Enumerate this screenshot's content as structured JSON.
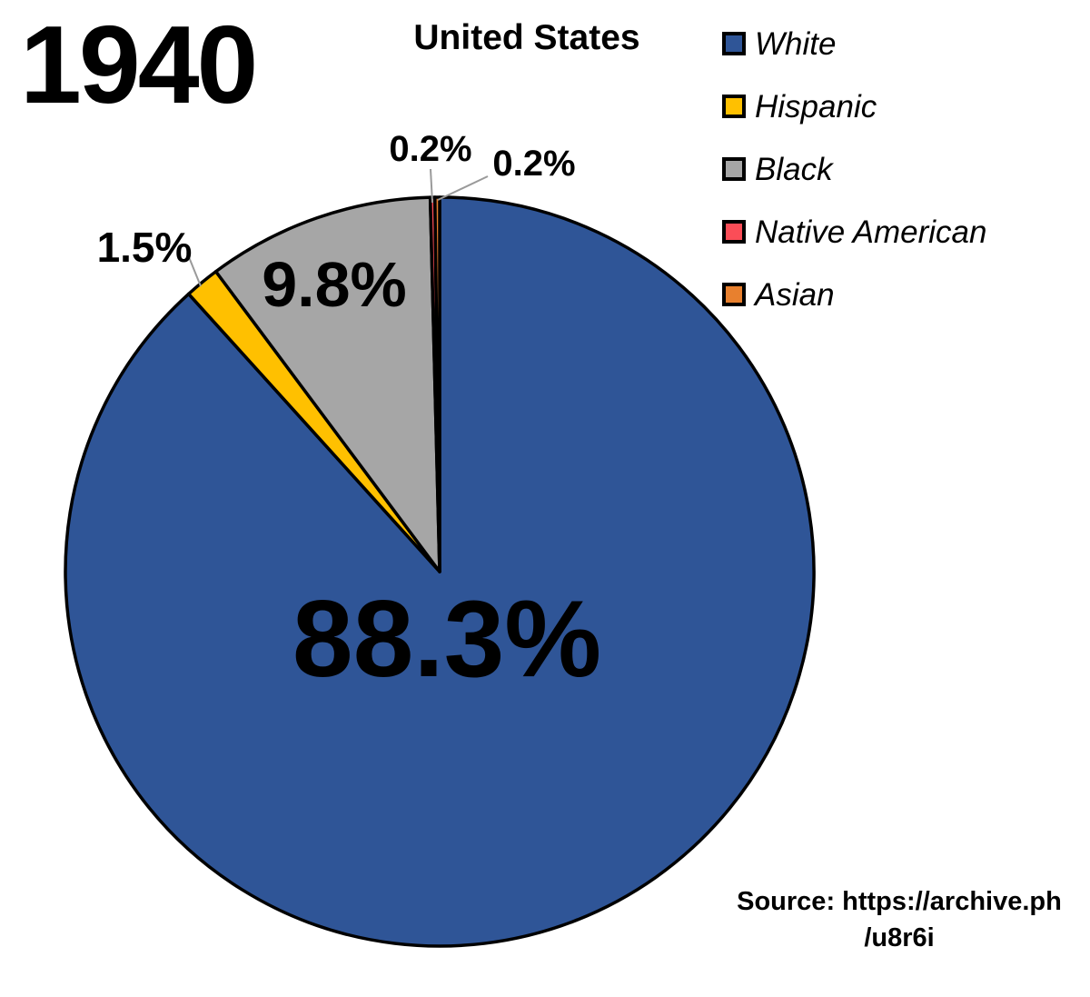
{
  "year": "1940",
  "title": "United States",
  "source": {
    "line1": "Source: https://archive.ph",
    "line2": "/u8r6i"
  },
  "legend": [
    {
      "label": "White",
      "color": "#2F5597"
    },
    {
      "label": "Hispanic",
      "color": "#FFC000"
    },
    {
      "label": "Black",
      "color": "#A6A6A6"
    },
    {
      "label": "Native American",
      "color": "#FB4D57"
    },
    {
      "label": "Asian",
      "color": "#E8802E"
    }
  ],
  "chart_data": {
    "type": "pie",
    "title": "United States",
    "categories": [
      "White",
      "Hispanic",
      "Black",
      "Native American",
      "Asian"
    ],
    "values": [
      88.3,
      1.5,
      9.8,
      0.2,
      0.2
    ],
    "labels": [
      "88.3%",
      "1.5%",
      "9.8%",
      "0.2%",
      "0.2%"
    ],
    "colors": [
      "#2F5597",
      "#FFC000",
      "#A6A6A6",
      "#FB4D57",
      "#E8802E"
    ],
    "start_angle_deg": 0,
    "direction": "clockwise",
    "legend_position": "right",
    "annotation_year": "1940"
  }
}
